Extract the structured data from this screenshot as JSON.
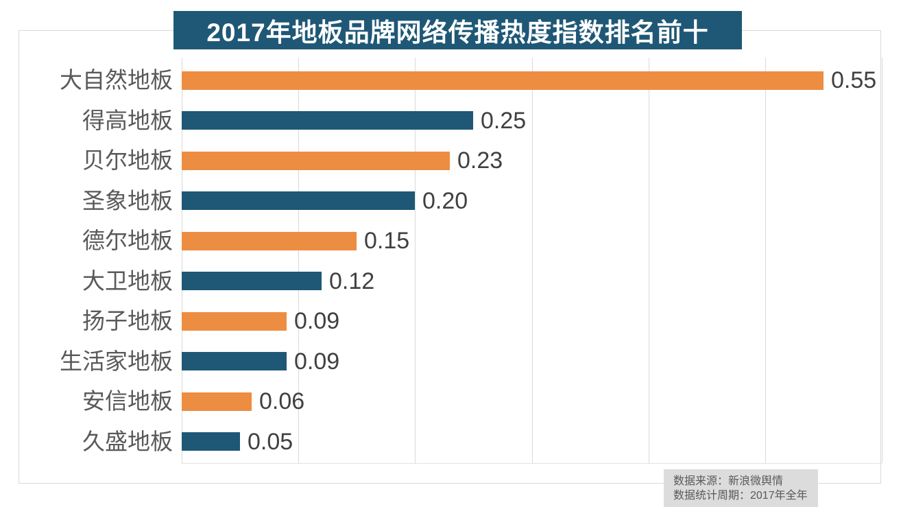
{
  "title": "2017年地板品牌网络传播热度指数排名前十",
  "chart_data": {
    "type": "bar",
    "orientation": "horizontal",
    "title": "2017年地板品牌网络传播热度指数排名前十",
    "categories": [
      "大自然地板",
      "得高地板",
      "贝尔地板",
      "圣象地板",
      "德尔地板",
      "大卫地板",
      "扬子地板",
      "生活家地板",
      "安信地板",
      "久盛地板"
    ],
    "values": [
      0.55,
      0.25,
      0.23,
      0.2,
      0.15,
      0.12,
      0.09,
      0.09,
      0.06,
      0.05
    ],
    "value_labels": [
      "0.55",
      "0.25",
      "0.23",
      "0.20",
      "0.15",
      "0.12",
      "0.09",
      "0.09",
      "0.06",
      "0.05"
    ],
    "xlabel": "",
    "ylabel": "",
    "xlim": [
      0,
      0.6
    ],
    "gridline_step": 0.1,
    "grid": true,
    "legend_position": "none"
  },
  "source_note": {
    "line1": "数据来源：新浪微舆情",
    "line2": "数据统计周期：2017年全年"
  },
  "colors": {
    "title_bg": "#1F5876",
    "title_text": "#FFFFFF",
    "bar_orange": "#ED8D42",
    "bar_blue": "#1F5876",
    "category_label": "#595959",
    "value_label": "#404040",
    "gridline": "#D9D9D9",
    "border": "#D9D9D9",
    "source_bg": "#DCDCDC",
    "source_text": "#595959"
  }
}
